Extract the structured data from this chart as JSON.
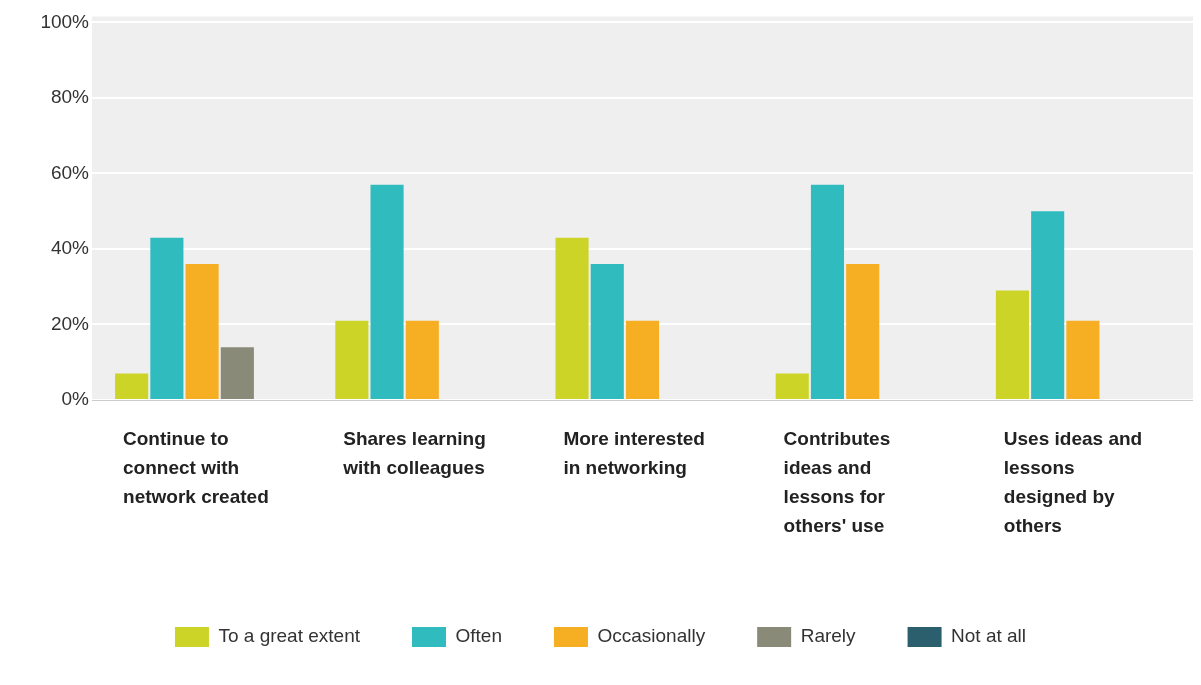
{
  "chart_data": {
    "type": "bar",
    "categories": [
      "Continue to connect with network created",
      "Shares learning with colleagues",
      "More interested in networking",
      "Contributes ideas and lessons for others' use",
      "Uses ideas and lessons designed by others"
    ],
    "series": [
      {
        "name": "To a great extent",
        "color": "#cdd428",
        "values": [
          7,
          21,
          43,
          7,
          29
        ]
      },
      {
        "name": "Often",
        "color": "#30bcbf",
        "values": [
          43,
          57,
          36,
          57,
          50
        ]
      },
      {
        "name": "Occasionally",
        "color": "#f6ae22",
        "values": [
          36,
          21,
          21,
          36,
          21
        ]
      },
      {
        "name": "Rarely",
        "color": "#8a8a78",
        "values": [
          14,
          0,
          0,
          0,
          0
        ]
      },
      {
        "name": "Not at all",
        "color": "#2c5f6e",
        "values": [
          0,
          0,
          0,
          0,
          0
        ]
      }
    ],
    "ylim": [
      0,
      100
    ],
    "yticks": [
      {
        "value": 0,
        "label": "0%"
      },
      {
        "value": 20,
        "label": "20%"
      },
      {
        "value": 40,
        "label": "40%"
      },
      {
        "value": 60,
        "label": "60%"
      },
      {
        "value": 80,
        "label": "80%"
      },
      {
        "value": 100,
        "label": "100%"
      }
    ],
    "grid": "y",
    "legend": "bottom"
  }
}
